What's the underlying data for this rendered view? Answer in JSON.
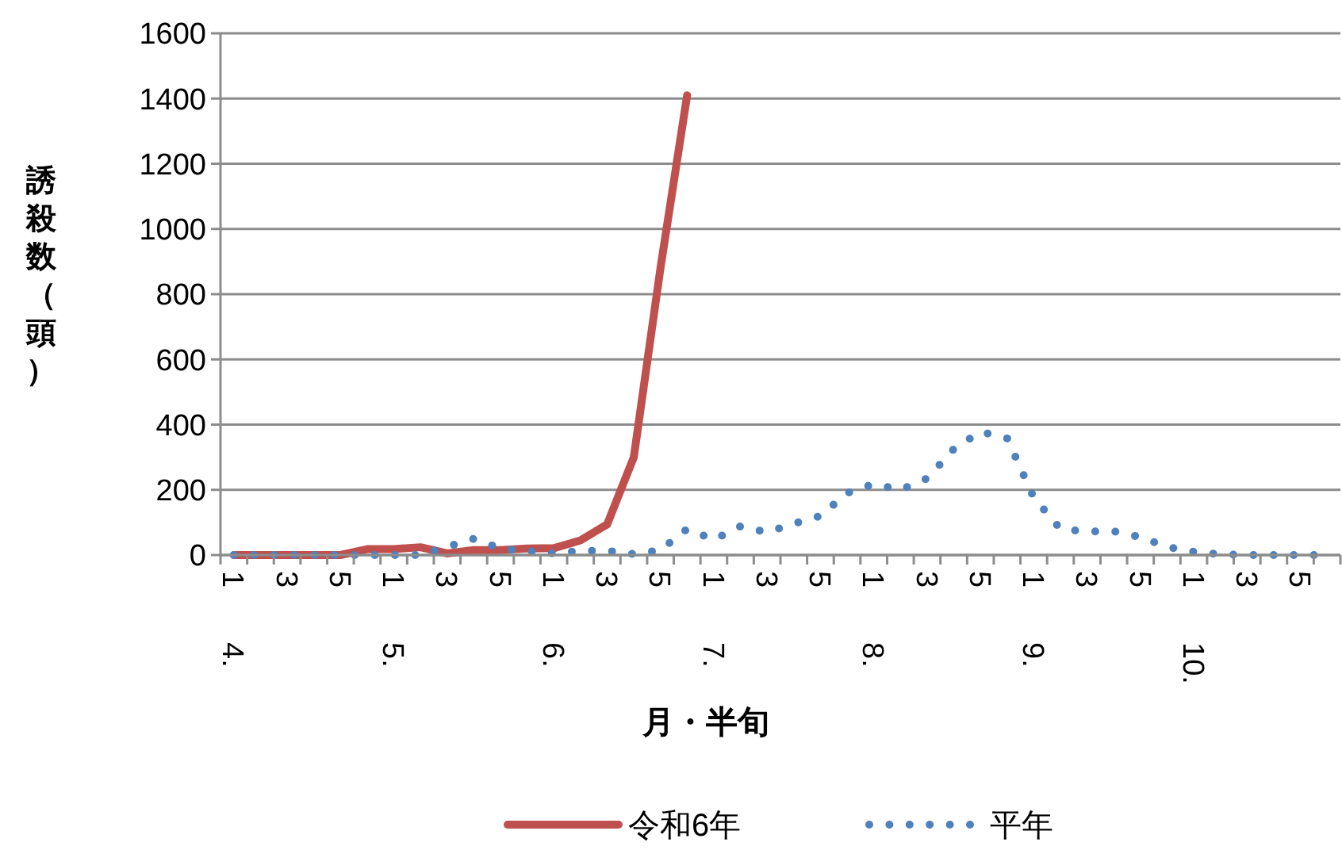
{
  "chart_data": {
    "type": "line",
    "xlabel": "月・半旬",
    "ylabel": "誘殺数（頭）",
    "categories": [
      "1",
      null,
      "3",
      null,
      "5",
      null,
      "1",
      null,
      "3",
      null,
      "5",
      null,
      "1",
      null,
      "3",
      null,
      "5",
      null,
      "1",
      null,
      "3",
      null,
      "5",
      null,
      "1",
      null,
      "3",
      null,
      "5",
      null,
      "1",
      null,
      "3",
      null,
      "5",
      null,
      "1",
      null,
      "3",
      null,
      "5",
      null
    ],
    "annotations": [
      "4.",
      "5.",
      "6.",
      "7.",
      "8.",
      "9.",
      "10."
    ],
    "series": [
      {
        "name": "令和6年",
        "color": "#c0504d",
        "line_style": "solid",
        "values": [
          0,
          0,
          0,
          0,
          0,
          18,
          18,
          24,
          5,
          15,
          15,
          20,
          21,
          45,
          94,
          300,
          880,
          1410,
          null,
          null,
          null,
          null,
          null,
          null,
          null,
          null,
          null,
          null,
          null,
          null,
          null,
          null,
          null,
          null,
          null,
          null,
          null,
          null,
          null,
          null,
          null,
          null
        ]
      },
      {
        "name": "平年",
        "color": "#4f81bd",
        "line_style": "dotted",
        "values": [
          0,
          0,
          0,
          0,
          0,
          0,
          0,
          0,
          25,
          50,
          20,
          12,
          5,
          13,
          13,
          3,
          15,
          80,
          47,
          88,
          70,
          96,
          120,
          190,
          218,
          200,
          235,
          325,
          378,
          358,
          176,
          80,
          72,
          73,
          55,
          25,
          10,
          2,
          0,
          0,
          0,
          0
        ]
      }
    ],
    "ylim": [
      0,
      1600
    ],
    "yticks": [
      0,
      200,
      400,
      600,
      800,
      1000,
      1200,
      1400,
      1600
    ],
    "grid": "y",
    "legend": "bottom"
  }
}
